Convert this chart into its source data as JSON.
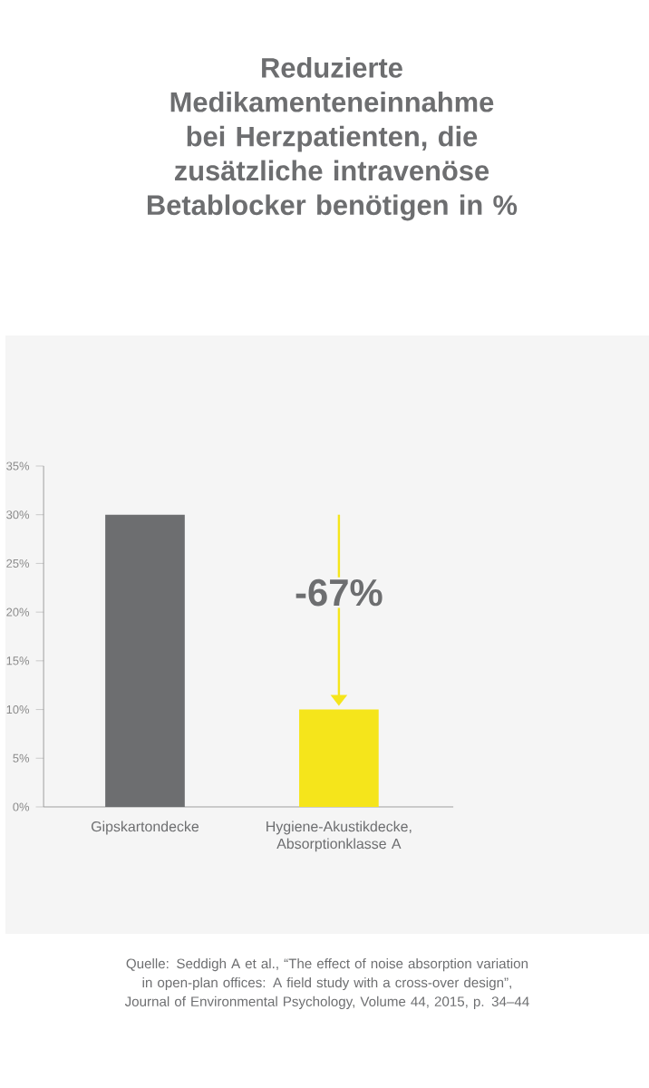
{
  "chart_data": {
    "type": "bar",
    "title": "Reduzierte Medikamenteneinnahme bei Herzpatienten, die zusätzliche intravenöse Betablocker benötigen in %",
    "categories": [
      "Gipskartondecke",
      "Hygiene-Akustikdecke, Absorptionklasse A"
    ],
    "values": [
      30,
      10
    ],
    "colors": [
      "#6d6e70",
      "#f5e51b"
    ],
    "ylim": [
      0,
      35
    ],
    "yticks": [
      {
        "value": 0,
        "label": "0%"
      },
      {
        "value": 5,
        "label": "5%"
      },
      {
        "value": 10,
        "label": "10%"
      },
      {
        "value": 15,
        "label": "15%"
      },
      {
        "value": 20,
        "label": "20%"
      },
      {
        "value": 25,
        "label": "25%"
      },
      {
        "value": 30,
        "label": "30%"
      },
      {
        "value": 35,
        "label": "35%"
      }
    ],
    "grid": false,
    "annotations": [
      "-67%",
      "Quelle: Seddigh A et al., “The effect of noise absorption variation in open-plan offices: A field study with a cross-over design”, Journal of Environmental Psychology, Volume 44, 2015, p. 34–44"
    ]
  }
}
